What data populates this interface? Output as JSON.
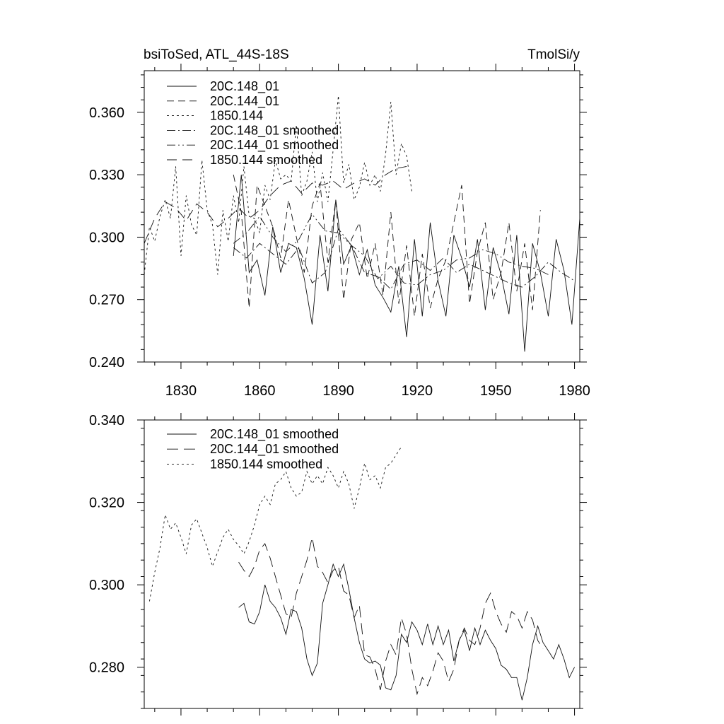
{
  "chart_data": [
    {
      "type": "line",
      "title_left": "bsiToSed, ATL_44S-18S",
      "title_right": "TmolSi/y",
      "xlim": [
        1816,
        1982
      ],
      "ylim": [
        0.24,
        0.38
      ],
      "xticks": [
        1830,
        1860,
        1890,
        1920,
        1950,
        1980
      ],
      "xticklabels": [
        "1830",
        "1860",
        "1890",
        "1920",
        "1950",
        "1980"
      ],
      "yticks": [
        0.24,
        0.27,
        0.3,
        0.33,
        0.36
      ],
      "yticklabels": [
        "0.240",
        "0.270",
        "0.300",
        "0.330",
        "0.360"
      ],
      "legend": [
        "20C.148_01",
        "20C.144_01",
        "1850.144",
        "20C.148_01 smoothed",
        "20C.144_01 smoothed",
        "1850.144 smoothed"
      ],
      "series": [
        {
          "name": "20C.148_01",
          "dash": "solid",
          "x": [
            1850,
            1853,
            1856,
            1859,
            1862,
            1865,
            1868,
            1871,
            1874,
            1877,
            1880,
            1883,
            1886,
            1889,
            1892,
            1895,
            1898,
            1901,
            1904,
            1907,
            1910,
            1913,
            1916,
            1919,
            1922,
            1925,
            1928,
            1931,
            1934,
            1937,
            1940,
            1943,
            1946,
            1949,
            1952,
            1955,
            1958,
            1961,
            1964,
            1967,
            1970,
            1973,
            1976,
            1979,
            1982
          ],
          "y": [
            0.291,
            0.33,
            0.283,
            0.289,
            0.272,
            0.305,
            0.283,
            0.297,
            0.295,
            0.28,
            0.258,
            0.301,
            0.274,
            0.318,
            0.287,
            0.296,
            0.282,
            0.294,
            0.277,
            0.271,
            0.264,
            0.286,
            0.252,
            0.299,
            0.262,
            0.307,
            0.279,
            0.262,
            0.301,
            0.29,
            0.276,
            0.299,
            0.265,
            0.295,
            0.282,
            0.263,
            0.301,
            0.245,
            0.297,
            0.283,
            0.262,
            0.299,
            0.284,
            0.258,
            0.309
          ]
        },
        {
          "name": "20C.144_01",
          "dash": "10,6",
          "x": [
            1850,
            1853,
            1856,
            1859,
            1862,
            1865,
            1868,
            1871,
            1874,
            1877,
            1880,
            1883,
            1886,
            1889,
            1892,
            1895,
            1898,
            1901,
            1904,
            1907,
            1910,
            1913,
            1916,
            1919,
            1922,
            1925,
            1928,
            1931,
            1934,
            1937,
            1940,
            1943,
            1946,
            1949,
            1952,
            1955,
            1958,
            1961,
            1964,
            1967
          ],
          "y": [
            0.33,
            0.312,
            0.266,
            0.325,
            0.315,
            0.305,
            0.29,
            0.318,
            0.3,
            0.283,
            0.315,
            0.326,
            0.288,
            0.318,
            0.27,
            0.299,
            0.307,
            0.28,
            0.297,
            0.272,
            0.312,
            0.268,
            0.296,
            0.262,
            0.292,
            0.266,
            0.28,
            0.289,
            0.307,
            0.325,
            0.268,
            0.293,
            0.307,
            0.27,
            0.283,
            0.307,
            0.274,
            0.297,
            0.265,
            0.313
          ]
        },
        {
          "name": "1850.144",
          "dash": "3,4",
          "x": [
            1816,
            1818,
            1820,
            1822,
            1824,
            1826,
            1828,
            1830,
            1832,
            1834,
            1836,
            1838,
            1840,
            1842,
            1844,
            1846,
            1848,
            1850,
            1852,
            1854,
            1856,
            1858,
            1860,
            1862,
            1864,
            1866,
            1868,
            1870,
            1872,
            1874,
            1876,
            1878,
            1880,
            1882,
            1884,
            1886,
            1888,
            1890,
            1892,
            1894,
            1896,
            1898,
            1900,
            1902,
            1904,
            1906,
            1908,
            1910,
            1912,
            1914,
            1916,
            1918
          ],
          "y": [
            0.282,
            0.305,
            0.298,
            0.31,
            0.318,
            0.309,
            0.334,
            0.291,
            0.32,
            0.306,
            0.301,
            0.337,
            0.313,
            0.306,
            0.282,
            0.313,
            0.298,
            0.32,
            0.307,
            0.334,
            0.31,
            0.309,
            0.302,
            0.325,
            0.318,
            0.337,
            0.328,
            0.33,
            0.327,
            0.354,
            0.32,
            0.327,
            0.341,
            0.317,
            0.331,
            0.317,
            0.342,
            0.368,
            0.326,
            0.335,
            0.318,
            0.324,
            0.336,
            0.325,
            0.33,
            0.322,
            0.34,
            0.365,
            0.33,
            0.345,
            0.339,
            0.322
          ]
        },
        {
          "name": "20C.148_01 smoothed",
          "dash": "12,4,2,4",
          "x": [
            1850,
            1855,
            1860,
            1865,
            1870,
            1875,
            1880,
            1885,
            1890,
            1895,
            1900,
            1905,
            1910,
            1915,
            1920,
            1925,
            1930,
            1935,
            1940,
            1945,
            1950,
            1955,
            1960,
            1965,
            1970,
            1975,
            1980
          ],
          "y": [
            0.295,
            0.29,
            0.297,
            0.292,
            0.287,
            0.295,
            0.278,
            0.283,
            0.304,
            0.296,
            0.283,
            0.281,
            0.275,
            0.287,
            0.289,
            0.284,
            0.29,
            0.283,
            0.287,
            0.284,
            0.281,
            0.278,
            0.276,
            0.281,
            0.288,
            0.283,
            0.279
          ]
        },
        {
          "name": "20C.144_01 smoothed",
          "dash": "12,4,2,4,2,4",
          "x": [
            1850,
            1855,
            1860,
            1865,
            1870,
            1875,
            1880,
            1885,
            1890,
            1895,
            1900,
            1905,
            1910,
            1915,
            1920,
            1925,
            1930,
            1935,
            1940,
            1945,
            1950,
            1955,
            1960,
            1965,
            1970
          ],
          "y": [
            0.297,
            0.302,
            0.31,
            0.3,
            0.293,
            0.299,
            0.311,
            0.303,
            0.302,
            0.296,
            0.291,
            0.28,
            0.286,
            0.278,
            0.277,
            0.282,
            0.284,
            0.289,
            0.29,
            0.294,
            0.292,
            0.288,
            0.286,
            0.285,
            0.282
          ]
        },
        {
          "name": "1850.144 smoothed",
          "dash": "14,8",
          "x": [
            1816,
            1820,
            1824,
            1828,
            1832,
            1836,
            1840,
            1844,
            1848,
            1852,
            1856,
            1860,
            1864,
            1868,
            1872,
            1876,
            1880,
            1884,
            1888,
            1892,
            1896,
            1900,
            1904,
            1908,
            1912,
            1916
          ],
          "y": [
            0.297,
            0.309,
            0.317,
            0.314,
            0.308,
            0.316,
            0.312,
            0.305,
            0.309,
            0.314,
            0.309,
            0.313,
            0.32,
            0.325,
            0.327,
            0.321,
            0.326,
            0.325,
            0.327,
            0.323,
            0.326,
            0.328,
            0.325,
            0.33,
            0.333,
            0.334
          ]
        }
      ]
    },
    {
      "type": "line",
      "xlim": [
        1816,
        1982
      ],
      "ylim": [
        0.27,
        0.34
      ],
      "xticks": [
        1830,
        1860,
        1890,
        1920,
        1950,
        1980
      ],
      "xticklabels": [],
      "yticks": [
        0.28,
        0.3,
        0.32,
        0.34
      ],
      "yticklabels": [
        "0.280",
        "0.300",
        "0.320",
        "0.340"
      ],
      "legend": [
        "20C.148_01 smoothed",
        "20C.144_01 smoothed",
        "1850.144 smoothed"
      ],
      "series": [
        {
          "name": "20C.148_01 smoothed",
          "dash": "solid",
          "x": [
            1852,
            1854,
            1856,
            1858,
            1860,
            1862,
            1864,
            1866,
            1868,
            1870,
            1872,
            1874,
            1876,
            1878,
            1880,
            1882,
            1884,
            1886,
            1888,
            1890,
            1892,
            1894,
            1896,
            1898,
            1900,
            1902,
            1904,
            1906,
            1908,
            1910,
            1912,
            1914,
            1916,
            1918,
            1920,
            1922,
            1924,
            1926,
            1928,
            1930,
            1932,
            1934,
            1936,
            1938,
            1940,
            1942,
            1944,
            1946,
            1948,
            1950,
            1952,
            1954,
            1956,
            1958,
            1960,
            1962,
            1964,
            1966,
            1968,
            1970,
            1972,
            1974,
            1976,
            1978,
            1980
          ],
          "y": [
            0.2945,
            0.2955,
            0.291,
            0.2905,
            0.2935,
            0.3,
            0.296,
            0.2945,
            0.292,
            0.288,
            0.294,
            0.2935,
            0.2895,
            0.282,
            0.278,
            0.281,
            0.2955,
            0.3,
            0.305,
            0.302,
            0.305,
            0.299,
            0.292,
            0.286,
            0.282,
            0.281,
            0.2815,
            0.2805,
            0.275,
            0.2745,
            0.278,
            0.288,
            0.286,
            0.291,
            0.289,
            0.2855,
            0.2905,
            0.2855,
            0.29,
            0.2855,
            0.289,
            0.2815,
            0.2865,
            0.289,
            0.284,
            0.2895,
            0.2855,
            0.289,
            0.2865,
            0.2845,
            0.2805,
            0.2795,
            0.2775,
            0.2775,
            0.272,
            0.2775,
            0.2855,
            0.29,
            0.286,
            0.284,
            0.282,
            0.2855,
            0.282,
            0.2775,
            0.28
          ]
        },
        {
          "name": "20C.144_01 smoothed",
          "dash": "16,8",
          "x": [
            1852,
            1854,
            1856,
            1858,
            1860,
            1862,
            1864,
            1866,
            1868,
            1870,
            1872,
            1874,
            1876,
            1878,
            1880,
            1882,
            1884,
            1886,
            1888,
            1890,
            1892,
            1894,
            1896,
            1898,
            1900,
            1902,
            1904,
            1906,
            1908,
            1910,
            1912,
            1914,
            1916,
            1918,
            1920,
            1922,
            1924,
            1926,
            1928,
            1930,
            1932,
            1934,
            1936,
            1938,
            1940,
            1942,
            1944,
            1946,
            1948,
            1950,
            1952,
            1954,
            1956,
            1958,
            1960,
            1962,
            1964,
            1966,
            1968
          ],
          "y": [
            0.3055,
            0.3035,
            0.302,
            0.3045,
            0.3085,
            0.31,
            0.3065,
            0.302,
            0.2975,
            0.293,
            0.292,
            0.298,
            0.302,
            0.306,
            0.3115,
            0.3045,
            0.303,
            0.3005,
            0.3035,
            0.3045,
            0.2985,
            0.2975,
            0.292,
            0.295,
            0.283,
            0.2825,
            0.2795,
            0.2745,
            0.2815,
            0.2855,
            0.283,
            0.292,
            0.288,
            0.2795,
            0.2735,
            0.2775,
            0.2755,
            0.279,
            0.2835,
            0.2815,
            0.2765,
            0.2795,
            0.2865,
            0.2895,
            0.2865,
            0.2855,
            0.2895,
            0.2955,
            0.298,
            0.2935,
            0.2905,
            0.2885,
            0.2935,
            0.2925,
            0.2895,
            0.2935,
            0.2915,
            0.2865,
            0.2845
          ]
        },
        {
          "name": "1850.144 smoothed",
          "dash": "3,4",
          "x": [
            1818,
            1820,
            1822,
            1824,
            1826,
            1828,
            1830,
            1832,
            1834,
            1836,
            1838,
            1840,
            1842,
            1844,
            1846,
            1848,
            1850,
            1852,
            1854,
            1856,
            1858,
            1860,
            1862,
            1864,
            1866,
            1868,
            1870,
            1872,
            1874,
            1876,
            1878,
            1880,
            1882,
            1884,
            1886,
            1888,
            1890,
            1892,
            1894,
            1896,
            1898,
            1900,
            1902,
            1904,
            1906,
            1908,
            1910,
            1912,
            1914
          ],
          "y": [
            0.296,
            0.303,
            0.309,
            0.317,
            0.3135,
            0.315,
            0.3115,
            0.3075,
            0.3145,
            0.316,
            0.3125,
            0.309,
            0.3045,
            0.308,
            0.3115,
            0.3135,
            0.311,
            0.3095,
            0.3075,
            0.3105,
            0.3145,
            0.3195,
            0.3215,
            0.3195,
            0.3245,
            0.3255,
            0.3275,
            0.3235,
            0.3215,
            0.3225,
            0.3275,
            0.3245,
            0.3265,
            0.3245,
            0.3285,
            0.3265,
            0.3235,
            0.3275,
            0.3245,
            0.3185,
            0.3235,
            0.3295,
            0.3255,
            0.3265,
            0.3235,
            0.3285,
            0.3295,
            0.3315,
            0.3335
          ]
        }
      ]
    }
  ]
}
